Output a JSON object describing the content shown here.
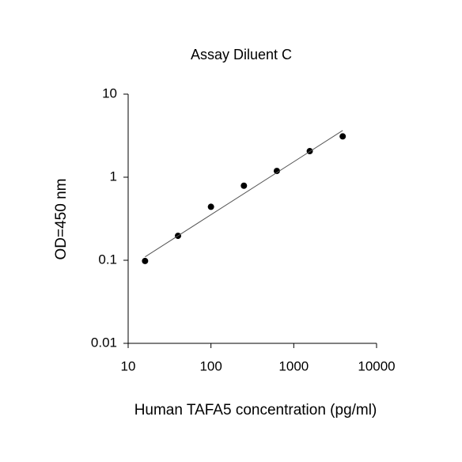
{
  "chart_data": {
    "type": "scatter",
    "title": "Assay Diluent C",
    "x_label": "Human TAFA5 concentration (pg/ml)",
    "y_label": "OD=450 nm",
    "x_log": true,
    "y_log": true,
    "xlim": [
      10,
      10000
    ],
    "xticks": [
      10,
      100,
      1000,
      10000
    ],
    "ylim": [
      0.01,
      10
    ],
    "yticks": [
      0.01,
      0.1,
      1,
      10
    ],
    "series": [
      {
        "color": "#000000",
        "x": [
          16,
          40,
          100,
          250,
          625,
          1560,
          3900
        ],
        "values": [
          0.098,
          0.197,
          0.44,
          0.79,
          1.19,
          2.06,
          3.1
        ]
      },
      {
        "color": "#555555",
        "line": true,
        "x": [
          16,
          3900
        ],
        "values": [
          0.11,
          3.65
        ]
      }
    ]
  }
}
